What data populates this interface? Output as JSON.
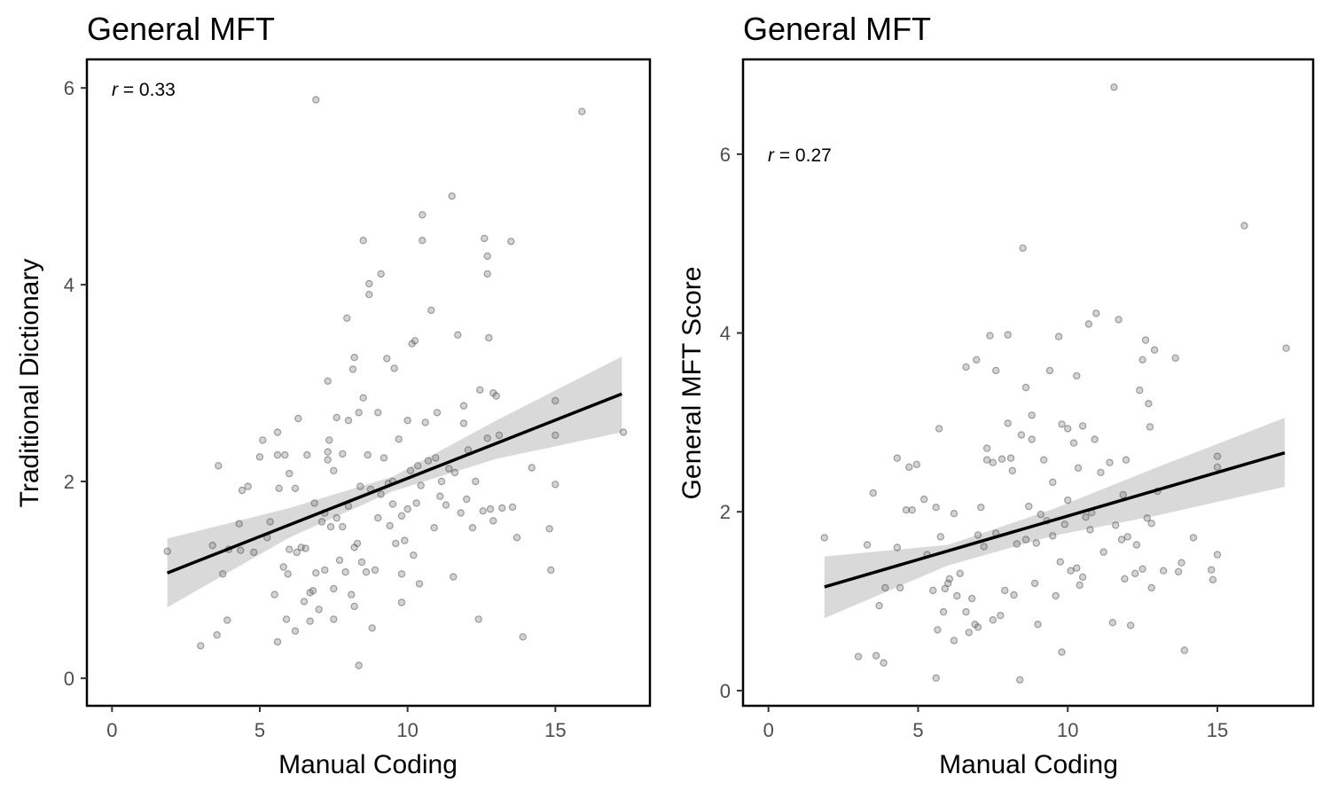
{
  "chart_data": [
    {
      "type": "scatter",
      "title": "General MFT",
      "xlabel": "Manual Coding",
      "ylabel": "Traditional Dictionary",
      "xlim": [
        -0.85,
        18.2
      ],
      "ylim": [
        -0.28,
        6.29
      ],
      "xticks": [
        0,
        5,
        10,
        15
      ],
      "yticks": [
        0,
        2,
        4,
        6
      ],
      "annotation": {
        "r_symbol": "r",
        "r_text": " = 0.33"
      },
      "fit": {
        "x": [
          1.87,
          17.25
        ],
        "y": [
          1.07,
          2.89
        ]
      },
      "ribbon": {
        "x": [
          1.87,
          6.0,
          9.5,
          13.0,
          17.25
        ],
        "lower": [
          0.72,
          1.43,
          1.9,
          2.23,
          2.5
        ],
        "upper": [
          1.42,
          1.73,
          2.05,
          2.62,
          3.27
        ]
      },
      "grid": false,
      "points": [
        [
          1.87,
          1.29
        ],
        [
          3.0,
          0.33
        ],
        [
          3.4,
          1.35
        ],
        [
          3.55,
          0.44
        ],
        [
          3.6,
          2.16
        ],
        [
          3.75,
          1.06
        ],
        [
          3.9,
          0.59
        ],
        [
          3.95,
          1.31
        ],
        [
          4.3,
          1.57
        ],
        [
          4.35,
          1.3
        ],
        [
          4.4,
          1.91
        ],
        [
          4.6,
          1.95
        ],
        [
          4.8,
          1.28
        ],
        [
          5.0,
          2.25
        ],
        [
          5.1,
          2.42
        ],
        [
          5.25,
          1.43
        ],
        [
          5.35,
          1.59
        ],
        [
          5.5,
          0.85
        ],
        [
          5.6,
          2.5
        ],
        [
          5.6,
          2.27
        ],
        [
          5.65,
          1.93
        ],
        [
          5.6,
          0.37
        ],
        [
          5.8,
          1.13
        ],
        [
          5.85,
          2.27
        ],
        [
          5.9,
          0.6
        ],
        [
          5.95,
          1.06
        ],
        [
          6.0,
          1.31
        ],
        [
          6.0,
          2.08
        ],
        [
          6.2,
          1.93
        ],
        [
          6.2,
          0.48
        ],
        [
          6.25,
          1.28
        ],
        [
          6.3,
          2.64
        ],
        [
          6.4,
          1.33
        ],
        [
          6.5,
          0.78
        ],
        [
          6.55,
          1.32
        ],
        [
          6.6,
          2.27
        ],
        [
          6.7,
          0.87
        ],
        [
          6.7,
          0.58
        ],
        [
          6.8,
          0.89
        ],
        [
          6.85,
          1.78
        ],
        [
          6.9,
          5.88
        ],
        [
          6.9,
          1.07
        ],
        [
          7.0,
          0.7
        ],
        [
          7.1,
          1.59
        ],
        [
          7.2,
          1.68
        ],
        [
          7.2,
          1.1
        ],
        [
          7.3,
          2.22
        ],
        [
          7.3,
          2.3
        ],
        [
          7.3,
          3.02
        ],
        [
          7.35,
          2.42
        ],
        [
          7.4,
          1.54
        ],
        [
          7.5,
          2.11
        ],
        [
          7.5,
          0.91
        ],
        [
          7.5,
          0.6
        ],
        [
          7.6,
          1.63
        ],
        [
          7.6,
          2.65
        ],
        [
          7.7,
          1.2
        ],
        [
          7.8,
          2.28
        ],
        [
          7.8,
          1.54
        ],
        [
          7.9,
          1.08
        ],
        [
          7.95,
          3.66
        ],
        [
          8.0,
          2.62
        ],
        [
          8.0,
          1.75
        ],
        [
          8.1,
          0.85
        ],
        [
          8.15,
          3.14
        ],
        [
          8.2,
          1.33
        ],
        [
          8.2,
          0.73
        ],
        [
          8.2,
          3.26
        ],
        [
          8.3,
          1.37
        ],
        [
          8.35,
          2.7
        ],
        [
          8.35,
          0.13
        ],
        [
          8.4,
          1.95
        ],
        [
          8.45,
          1.18
        ],
        [
          8.5,
          4.45
        ],
        [
          8.5,
          2.85
        ],
        [
          8.6,
          1.08
        ],
        [
          8.65,
          2.27
        ],
        [
          8.7,
          4.01
        ],
        [
          8.7,
          3.9
        ],
        [
          8.75,
          1.92
        ],
        [
          8.8,
          0.51
        ],
        [
          8.9,
          1.1
        ],
        [
          9.0,
          2.7
        ],
        [
          9.0,
          1.63
        ],
        [
          9.1,
          4.11
        ],
        [
          9.1,
          1.87
        ],
        [
          9.2,
          2.24
        ],
        [
          9.3,
          3.25
        ],
        [
          9.35,
          1.98
        ],
        [
          9.4,
          1.55
        ],
        [
          9.5,
          2.0
        ],
        [
          9.5,
          1.77
        ],
        [
          9.55,
          3.15
        ],
        [
          9.6,
          1.37
        ],
        [
          9.7,
          2.43
        ],
        [
          9.8,
          1.06
        ],
        [
          9.8,
          0.77
        ],
        [
          9.8,
          1.65
        ],
        [
          9.9,
          1.4
        ],
        [
          10.0,
          1.72
        ],
        [
          10.0,
          2.62
        ],
        [
          10.1,
          2.11
        ],
        [
          10.15,
          3.4
        ],
        [
          10.2,
          1.25
        ],
        [
          10.25,
          3.43
        ],
        [
          10.3,
          1.78
        ],
        [
          10.35,
          2.16
        ],
        [
          10.4,
          0.96
        ],
        [
          10.45,
          1.96
        ],
        [
          10.5,
          4.71
        ],
        [
          10.5,
          4.45
        ],
        [
          10.6,
          2.6
        ],
        [
          10.7,
          2.21
        ],
        [
          10.8,
          3.74
        ],
        [
          10.9,
          1.53
        ],
        [
          10.95,
          2.24
        ],
        [
          11.0,
          2.7
        ],
        [
          11.1,
          1.85
        ],
        [
          11.15,
          2.0
        ],
        [
          11.3,
          1.76
        ],
        [
          11.4,
          2.13
        ],
        [
          11.5,
          4.9
        ],
        [
          11.55,
          1.03
        ],
        [
          11.6,
          2.09
        ],
        [
          11.7,
          3.49
        ],
        [
          11.8,
          1.68
        ],
        [
          11.9,
          2.59
        ],
        [
          11.9,
          2.77
        ],
        [
          12.0,
          1.82
        ],
        [
          12.05,
          2.32
        ],
        [
          12.2,
          1.53
        ],
        [
          12.3,
          2.0
        ],
        [
          12.4,
          0.6
        ],
        [
          12.45,
          2.93
        ],
        [
          12.55,
          1.7
        ],
        [
          12.6,
          4.47
        ],
        [
          12.7,
          4.11
        ],
        [
          12.7,
          4.29
        ],
        [
          12.7,
          2.44
        ],
        [
          12.75,
          3.46
        ],
        [
          12.8,
          1.72
        ],
        [
          12.9,
          2.9
        ],
        [
          12.9,
          1.6
        ],
        [
          13.0,
          2.87
        ],
        [
          13.1,
          2.47
        ],
        [
          13.2,
          1.73
        ],
        [
          13.5,
          4.44
        ],
        [
          13.55,
          1.74
        ],
        [
          13.7,
          1.43
        ],
        [
          13.9,
          0.42
        ],
        [
          14.2,
          2.14
        ],
        [
          14.8,
          1.52
        ],
        [
          14.85,
          1.1
        ],
        [
          15.0,
          2.82
        ],
        [
          15.0,
          2.47
        ],
        [
          15.0,
          1.97
        ],
        [
          15.9,
          5.76
        ],
        [
          17.3,
          2.5
        ]
      ]
    },
    {
      "type": "scatter",
      "title": "General MFT",
      "xlabel": "Manual Coding",
      "ylabel": "General MFT Score",
      "xlim": [
        -0.85,
        18.2
      ],
      "ylim": [
        -0.17,
        7.06
      ],
      "xticks": [
        0,
        5,
        10,
        15
      ],
      "yticks": [
        0,
        2,
        4,
        6
      ],
      "annotation": {
        "r_symbol": "r",
        "r_text": " = 0.27"
      },
      "fit": {
        "x": [
          1.87,
          17.25
        ],
        "y": [
          1.16,
          2.66
        ]
      },
      "ribbon": {
        "x": [
          1.87,
          6.0,
          9.5,
          13.0,
          17.25
        ],
        "lower": [
          0.81,
          1.4,
          1.73,
          1.96,
          2.28
        ],
        "upper": [
          1.5,
          1.63,
          2.03,
          2.5,
          3.05
        ]
      },
      "grid": false,
      "points": [
        [
          1.87,
          1.71
        ],
        [
          3.0,
          0.38
        ],
        [
          3.3,
          1.63
        ],
        [
          3.6,
          0.39
        ],
        [
          3.5,
          2.21
        ],
        [
          3.7,
          0.95
        ],
        [
          3.85,
          0.31
        ],
        [
          3.9,
          1.15
        ],
        [
          4.3,
          1.6
        ],
        [
          4.3,
          2.6
        ],
        [
          4.4,
          1.15
        ],
        [
          4.6,
          2.02
        ],
        [
          4.7,
          2.5
        ],
        [
          4.8,
          2.02
        ],
        [
          4.95,
          2.53
        ],
        [
          5.2,
          2.14
        ],
        [
          5.3,
          1.52
        ],
        [
          5.5,
          1.12
        ],
        [
          5.6,
          2.05
        ],
        [
          5.7,
          2.93
        ],
        [
          5.65,
          0.68
        ],
        [
          5.75,
          1.72
        ],
        [
          5.85,
          0.88
        ],
        [
          5.9,
          1.14
        ],
        [
          6.0,
          1.2
        ],
        [
          6.05,
          1.25
        ],
        [
          6.2,
          1.98
        ],
        [
          6.2,
          0.56
        ],
        [
          6.3,
          1.06
        ],
        [
          6.4,
          1.31
        ],
        [
          5.6,
          0.14
        ],
        [
          6.6,
          3.62
        ],
        [
          6.6,
          0.88
        ],
        [
          6.7,
          0.65
        ],
        [
          6.8,
          1.03
        ],
        [
          6.9,
          0.74
        ],
        [
          6.95,
          3.7
        ],
        [
          7.0,
          1.74
        ],
        [
          7.0,
          0.71
        ],
        [
          7.1,
          2.05
        ],
        [
          7.2,
          1.61
        ],
        [
          7.3,
          2.71
        ],
        [
          7.3,
          2.58
        ],
        [
          7.4,
          3.97
        ],
        [
          7.5,
          2.55
        ],
        [
          7.5,
          0.79
        ],
        [
          7.6,
          1.76
        ],
        [
          7.6,
          3.58
        ],
        [
          7.75,
          0.84
        ],
        [
          7.8,
          2.59
        ],
        [
          7.9,
          1.12
        ],
        [
          8.0,
          3.98
        ],
        [
          8.0,
          2.99
        ],
        [
          8.1,
          2.6
        ],
        [
          8.15,
          2.46
        ],
        [
          8.2,
          1.07
        ],
        [
          8.3,
          1.64
        ],
        [
          8.4,
          0.12
        ],
        [
          8.45,
          2.86
        ],
        [
          8.5,
          4.95
        ],
        [
          8.6,
          1.69
        ],
        [
          8.6,
          3.39
        ],
        [
          8.7,
          2.06
        ],
        [
          8.8,
          3.08
        ],
        [
          8.8,
          2.81
        ],
        [
          8.9,
          1.2
        ],
        [
          8.95,
          1.65
        ],
        [
          9.0,
          0.74
        ],
        [
          9.1,
          1.97
        ],
        [
          9.2,
          2.58
        ],
        [
          9.3,
          1.9
        ],
        [
          9.4,
          3.58
        ],
        [
          9.5,
          1.73
        ],
        [
          9.5,
          2.33
        ],
        [
          9.6,
          1.06
        ],
        [
          9.7,
          3.96
        ],
        [
          9.75,
          1.44
        ],
        [
          9.8,
          2.98
        ],
        [
          9.8,
          0.43
        ],
        [
          9.9,
          1.86
        ],
        [
          10.0,
          2.93
        ],
        [
          10.0,
          2.13
        ],
        [
          10.1,
          1.34
        ],
        [
          10.2,
          2.77
        ],
        [
          10.3,
          3.52
        ],
        [
          10.3,
          1.37
        ],
        [
          10.35,
          2.49
        ],
        [
          10.4,
          1.18
        ],
        [
          10.5,
          2.96
        ],
        [
          10.5,
          1.27
        ],
        [
          10.6,
          1.94
        ],
        [
          10.7,
          4.1
        ],
        [
          10.75,
          1.8
        ],
        [
          10.8,
          1.99
        ],
        [
          10.9,
          2.81
        ],
        [
          10.95,
          4.22
        ],
        [
          11.1,
          2.44
        ],
        [
          11.2,
          1.55
        ],
        [
          11.4,
          2.55
        ],
        [
          11.5,
          0.76
        ],
        [
          11.55,
          6.75
        ],
        [
          11.6,
          1.85
        ],
        [
          11.7,
          4.15
        ],
        [
          11.8,
          1.69
        ],
        [
          11.85,
          2.19
        ],
        [
          11.9,
          1.25
        ],
        [
          11.95,
          2.58
        ],
        [
          12.0,
          1.72
        ],
        [
          12.1,
          0.73
        ],
        [
          12.25,
          1.31
        ],
        [
          12.3,
          1.63
        ],
        [
          12.4,
          3.36
        ],
        [
          12.5,
          1.36
        ],
        [
          12.5,
          3.7
        ],
        [
          12.6,
          3.92
        ],
        [
          12.65,
          1.93
        ],
        [
          12.7,
          3.21
        ],
        [
          12.75,
          2.95
        ],
        [
          12.8,
          1.87
        ],
        [
          12.8,
          1.15
        ],
        [
          12.9,
          3.81
        ],
        [
          13.0,
          2.23
        ],
        [
          13.2,
          1.34
        ],
        [
          13.6,
          3.72
        ],
        [
          13.7,
          1.33
        ],
        [
          13.8,
          1.43
        ],
        [
          13.9,
          0.45
        ],
        [
          14.2,
          1.71
        ],
        [
          14.8,
          1.35
        ],
        [
          14.85,
          1.24
        ],
        [
          15.0,
          2.62
        ],
        [
          15.0,
          2.5
        ],
        [
          15.0,
          1.52
        ],
        [
          15.9,
          5.2
        ],
        [
          17.3,
          3.83
        ]
      ]
    }
  ]
}
